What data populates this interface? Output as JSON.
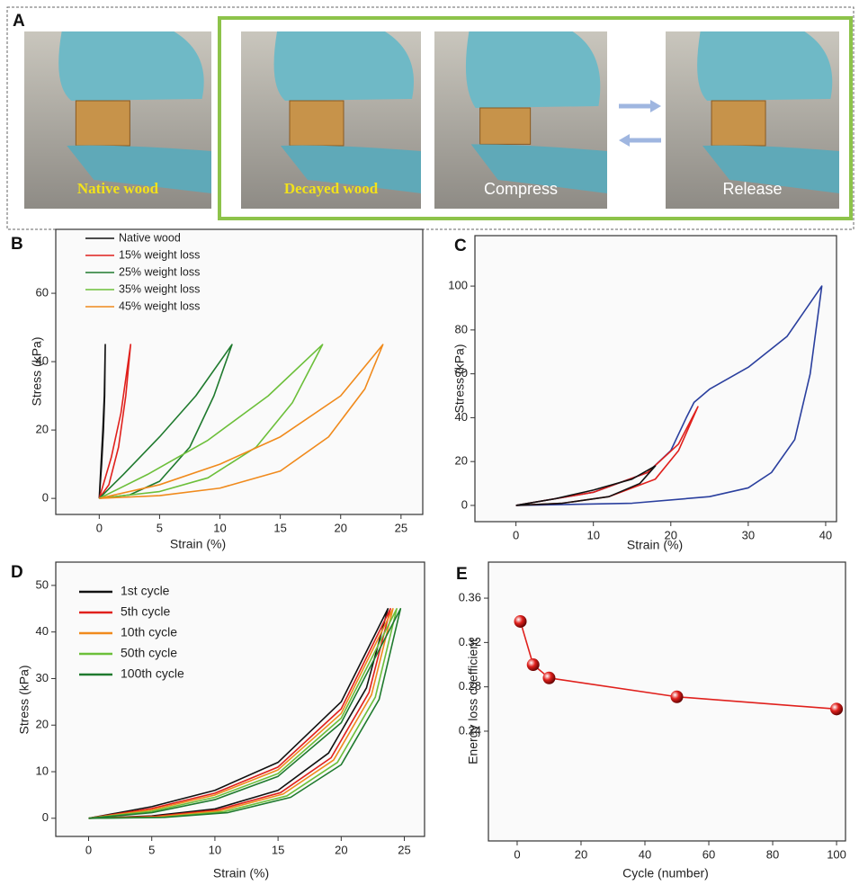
{
  "panel_a": {
    "label": "A",
    "photos": [
      {
        "caption": "Native wood"
      },
      {
        "caption": "Decayed wood"
      },
      {
        "caption": "Compress"
      },
      {
        "caption": "Release"
      }
    ]
  },
  "chart_data": [
    {
      "type": "line",
      "panel": "B",
      "x_label": "Strain (%)",
      "y_label": "Stress (kPa)",
      "xlim": [
        -3.6,
        26.8
      ],
      "ylim": [
        -4.7,
        78.7
      ],
      "xticks": [
        0,
        5,
        10,
        15,
        20,
        25
      ],
      "yticks": [
        0,
        20,
        40,
        60
      ],
      "legend": "upper left",
      "series": [
        {
          "name": "Native wood",
          "color": "#111111",
          "x": [
            0,
            0.2,
            0.35,
            0.45,
            0.5,
            0.42,
            0.3,
            0.15,
            0
          ],
          "values": [
            0,
            10,
            20,
            30,
            45,
            30,
            20,
            10,
            0
          ]
        },
        {
          "name": "15% weight loss",
          "color": "#e0201c",
          "x": [
            0,
            1,
            1.8,
            2.6,
            2.2,
            1.6,
            0.8,
            0
          ],
          "values": [
            0,
            12,
            25,
            45,
            30,
            15,
            4,
            0
          ]
        },
        {
          "name": "25% weight loss",
          "color": "#1f7a2e",
          "x": [
            0,
            2,
            5,
            8,
            11,
            9.5,
            7.5,
            5,
            2.5,
            0
          ],
          "values": [
            0,
            7,
            18,
            30,
            45,
            30,
            15,
            5,
            1,
            0
          ]
        },
        {
          "name": "35% weight loss",
          "color": "#6cbf3a",
          "x": [
            0,
            4,
            9,
            14,
            18.5,
            16,
            13,
            9,
            5,
            0
          ],
          "values": [
            0,
            7,
            17,
            30,
            45,
            28,
            15,
            6,
            2,
            0
          ]
        },
        {
          "name": "45% weight loss",
          "color": "#f08a1c",
          "x": [
            0,
            5,
            10,
            15,
            20,
            23.5,
            22,
            19,
            15,
            10,
            5,
            0
          ],
          "values": [
            0,
            4,
            10,
            18,
            30,
            45,
            32,
            18,
            8,
            3,
            0.8,
            0
          ]
        }
      ]
    },
    {
      "type": "line",
      "panel": "C",
      "x_label": "Strain (%)",
      "y_label": "Stress (kPa)",
      "xlim": [
        -5.3,
        41.4
      ],
      "ylim": [
        -7.4,
        123
      ],
      "xticks": [
        0,
        10,
        20,
        30,
        40
      ],
      "yticks": [
        0,
        20,
        40,
        60,
        80,
        100
      ],
      "series": [
        {
          "color": "#2a3f9e",
          "x": [
            0,
            10,
            17,
            20,
            22,
            23,
            25,
            30,
            35,
            39.5,
            38,
            36,
            33,
            30,
            25,
            15,
            0
          ],
          "values": [
            0,
            6,
            15,
            25,
            40,
            47,
            53,
            63,
            77,
            100,
            60,
            30,
            15,
            8,
            4,
            1,
            0
          ]
        },
        {
          "color": "#e0201c",
          "x": [
            0,
            10,
            17,
            21,
            23.5,
            21,
            18,
            12,
            6,
            0
          ],
          "values": [
            0,
            6,
            15,
            28,
            45,
            25,
            12,
            4,
            1,
            0
          ]
        },
        {
          "color": "#111111",
          "x": [
            0,
            5,
            10,
            15,
            18,
            16,
            12,
            6,
            0
          ],
          "values": [
            0,
            3,
            7,
            12,
            18,
            10,
            4,
            1,
            0
          ]
        }
      ]
    },
    {
      "type": "line",
      "panel": "D",
      "x_label": "Strain (%)",
      "y_label": "Stress (kPa)",
      "xlim": [
        -2.6,
        26.6
      ],
      "ylim": [
        -3.9,
        55
      ],
      "xticks": [
        0,
        5,
        10,
        15,
        20,
        25
      ],
      "yticks": [
        0,
        10,
        20,
        30,
        40,
        50
      ],
      "legend": "upper left",
      "series": [
        {
          "name": "1st cycle",
          "color": "#111111",
          "x": [
            0,
            5,
            10,
            15,
            20,
            23.7,
            22,
            19,
            15,
            10,
            5,
            0
          ],
          "values": [
            0,
            2.5,
            6,
            12,
            25,
            45,
            28,
            14,
            6,
            2,
            0.5,
            0
          ]
        },
        {
          "name": "5th cycle",
          "color": "#e0201c",
          "x": [
            0,
            5,
            10,
            15,
            20,
            23.9,
            22.2,
            19.2,
            15.2,
            10.2,
            5.2,
            0
          ],
          "values": [
            0,
            2.1,
            5.4,
            11,
            23.5,
            45,
            27,
            13,
            5.5,
            1.8,
            0.4,
            0
          ]
        },
        {
          "name": "10th cycle",
          "color": "#f08a1c",
          "x": [
            0,
            5,
            10,
            15,
            20,
            24.1,
            22.4,
            19.4,
            15.4,
            10.4,
            5.4,
            0
          ],
          "values": [
            0,
            1.8,
            5,
            10.4,
            22.5,
            45,
            26.5,
            12.5,
            5.2,
            1.6,
            0.3,
            0
          ]
        },
        {
          "name": "50th cycle",
          "color": "#6cbf3a",
          "x": [
            0,
            5,
            10,
            15,
            20,
            24.4,
            22.7,
            19.7,
            15.7,
            10.7,
            5.7,
            0
          ],
          "values": [
            0,
            1.5,
            4.5,
            9.6,
            21.5,
            45,
            26,
            12,
            4.8,
            1.4,
            0.2,
            0
          ]
        },
        {
          "name": "100th cycle",
          "color": "#1f7a2e",
          "x": [
            0,
            5,
            10,
            15,
            20,
            24.7,
            23,
            20,
            16,
            11,
            6,
            0
          ],
          "values": [
            0,
            1.2,
            4,
            9,
            20.5,
            45,
            25.5,
            11.5,
            4.5,
            1.2,
            0.2,
            0
          ]
        }
      ]
    },
    {
      "type": "scatter",
      "panel": "E",
      "x_label": "Cycle (number)",
      "y_label": "Energy loss coefficient",
      "xlim": [
        -9,
        102.8
      ],
      "ylim": [
        0.141,
        0.3925
      ],
      "xticks": [
        0,
        20,
        40,
        60,
        80,
        100
      ],
      "yticks": [
        0.24,
        0.28,
        0.32,
        0.36
      ],
      "connect": true,
      "series": [
        {
          "color": "#e0201c",
          "x": [
            1,
            5,
            10,
            50,
            100
          ],
          "values": [
            0.339,
            0.3,
            0.288,
            0.271,
            0.26
          ]
        }
      ]
    }
  ]
}
